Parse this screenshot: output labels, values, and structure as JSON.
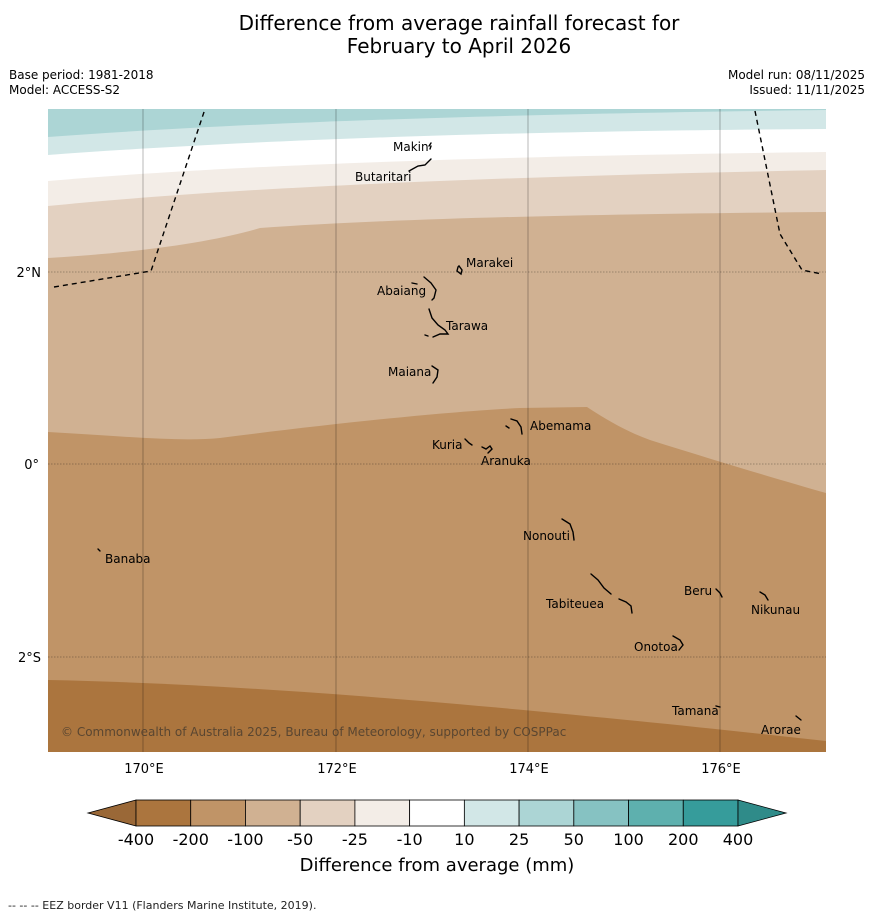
{
  "title": {
    "line1": "Difference from average rainfall forecast for",
    "line2": "February to April 2026"
  },
  "meta": {
    "base_period": "Base period: 1981-2018",
    "model": "Model: ACCESS-S2",
    "model_run": "Model run: 08/11/2025",
    "issued": "Issued: 11/11/2025"
  },
  "map": {
    "lat_labels": [
      "2°N",
      "0°",
      "2°S"
    ],
    "lon_labels": [
      "170°E",
      "172°E",
      "174°E",
      "176°E"
    ],
    "copyright": "© Commonwealth of Australia 2025, Bureau of Meteorology, supported by COSPPac",
    "places": [
      {
        "name": "Makin"
      },
      {
        "name": "Butaritari"
      },
      {
        "name": "Marakei"
      },
      {
        "name": "Abaiang"
      },
      {
        "name": "Tarawa"
      },
      {
        "name": "Maiana"
      },
      {
        "name": "Abemama"
      },
      {
        "name": "Kuria"
      },
      {
        "name": "Aranuka"
      },
      {
        "name": "Nonouti"
      },
      {
        "name": "Banaba"
      },
      {
        "name": "Beru"
      },
      {
        "name": "Tabiteuea"
      },
      {
        "name": "Nikunau"
      },
      {
        "name": "Onotoa"
      },
      {
        "name": "Tamana"
      },
      {
        "name": "Arorae"
      }
    ]
  },
  "colorbar": {
    "title": "Difference from average (mm)",
    "ticks": [
      "-400",
      "-200",
      "-100",
      "-50",
      "-25",
      "-10",
      "10",
      "25",
      "50",
      "100",
      "200",
      "400"
    ],
    "colors": [
      "#ab753e",
      "#c09467",
      "#d0b192",
      "#e3d1c1",
      "#f3ede7",
      "#ffffff",
      "#d2e7e7",
      "#acd5d5",
      "#86c2c2",
      "#5eb0ae",
      "#369c9b"
    ],
    "low_extend_color": "#9a6837",
    "high_extend_color": "#2f8b89"
  },
  "footer": "--  --  -- EEZ border V11 (Flanders Marine Institute, 2019)."
}
